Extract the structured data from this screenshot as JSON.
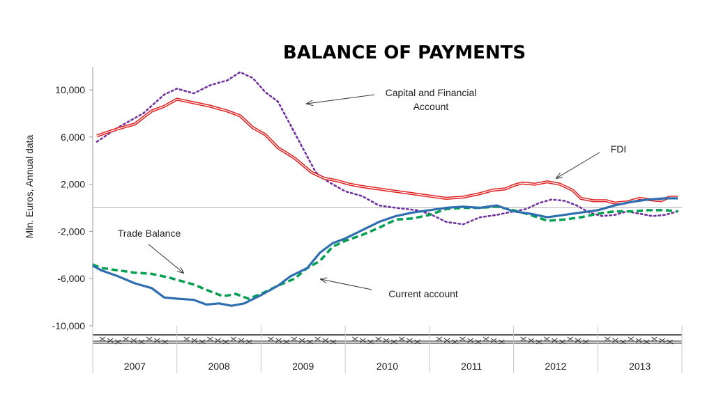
{
  "chart_data": {
    "type": "line",
    "title": "BALANCE OF PAYMENTS",
    "ylabel": "Mln. Euros, Annual data",
    "xlabel": "",
    "ylim": [
      -10000,
      12000
    ],
    "yticks": [
      10000,
      6000,
      2000,
      -2000,
      -6000,
      -10000
    ],
    "ytick_labels": [
      "10,000",
      "6,000",
      "2,000",
      "-2,000",
      "-6,000",
      "-10,000"
    ],
    "x_start": 2007.0,
    "x_end": 2014.0,
    "categories": [
      "2007",
      "2008",
      "2009",
      "2010",
      "2011",
      "2012",
      "2013"
    ],
    "zero_line": true,
    "grid": false,
    "legend": "none",
    "series": [
      {
        "key": "capital",
        "color": "#7030a0",
        "style": "dotted",
        "points": [
          [
            2007.05,
            5600
          ],
          [
            2007.3,
            6800
          ],
          [
            2007.6,
            8000
          ],
          [
            2007.85,
            9600
          ],
          [
            2008.0,
            10100
          ],
          [
            2008.2,
            9700
          ],
          [
            2008.4,
            10400
          ],
          [
            2008.6,
            10800
          ],
          [
            2008.75,
            11500
          ],
          [
            2008.9,
            11000
          ],
          [
            2009.05,
            9800
          ],
          [
            2009.2,
            9000
          ],
          [
            2009.35,
            7000
          ],
          [
            2009.5,
            5000
          ],
          [
            2009.65,
            3000
          ],
          [
            2009.8,
            2200
          ],
          [
            2010.0,
            1400
          ],
          [
            2010.2,
            1000
          ],
          [
            2010.4,
            200
          ],
          [
            2010.6,
            0
          ],
          [
            2010.85,
            -200
          ],
          [
            2011.0,
            -500
          ],
          [
            2011.2,
            -1200
          ],
          [
            2011.4,
            -1400
          ],
          [
            2011.6,
            -800
          ],
          [
            2011.8,
            -600
          ],
          [
            2012.0,
            -300
          ],
          [
            2012.15,
            -100
          ],
          [
            2012.3,
            400
          ],
          [
            2012.45,
            700
          ],
          [
            2012.6,
            600
          ],
          [
            2012.75,
            200
          ],
          [
            2012.9,
            -400
          ],
          [
            2013.05,
            -700
          ],
          [
            2013.2,
            -600
          ],
          [
            2013.35,
            -300
          ],
          [
            2013.5,
            -500
          ],
          [
            2013.65,
            -700
          ],
          [
            2013.8,
            -600
          ],
          [
            2013.95,
            -300
          ]
        ]
      },
      {
        "key": "fdi",
        "color": "#e02020",
        "style": "double",
        "points": [
          [
            2007.05,
            6100
          ],
          [
            2007.3,
            6700
          ],
          [
            2007.5,
            7100
          ],
          [
            2007.7,
            8200
          ],
          [
            2007.85,
            8600
          ],
          [
            2008.0,
            9200
          ],
          [
            2008.2,
            8900
          ],
          [
            2008.4,
            8600
          ],
          [
            2008.6,
            8200
          ],
          [
            2008.75,
            7800
          ],
          [
            2008.9,
            6800
          ],
          [
            2009.05,
            6200
          ],
          [
            2009.2,
            5100
          ],
          [
            2009.4,
            4200
          ],
          [
            2009.6,
            3000
          ],
          [
            2009.75,
            2500
          ],
          [
            2009.9,
            2300
          ],
          [
            2010.05,
            2000
          ],
          [
            2010.2,
            1800
          ],
          [
            2010.4,
            1600
          ],
          [
            2010.6,
            1400
          ],
          [
            2010.8,
            1200
          ],
          [
            2011.0,
            1000
          ],
          [
            2011.2,
            800
          ],
          [
            2011.4,
            900
          ],
          [
            2011.6,
            1200
          ],
          [
            2011.75,
            1500
          ],
          [
            2011.9,
            1600
          ],
          [
            2012.0,
            1900
          ],
          [
            2012.1,
            2100
          ],
          [
            2012.25,
            2000
          ],
          [
            2012.4,
            2200
          ],
          [
            2012.55,
            2000
          ],
          [
            2012.7,
            1500
          ],
          [
            2012.8,
            800
          ],
          [
            2012.95,
            600
          ],
          [
            2013.1,
            600
          ],
          [
            2013.2,
            400
          ],
          [
            2013.35,
            500
          ],
          [
            2013.5,
            800
          ],
          [
            2013.6,
            700
          ],
          [
            2013.75,
            600
          ],
          [
            2013.85,
            900
          ],
          [
            2013.95,
            900
          ]
        ]
      },
      {
        "key": "trade",
        "color": "#00a050",
        "style": "dashed",
        "points": [
          [
            2007.0,
            -4800
          ],
          [
            2007.1,
            -5100
          ],
          [
            2007.3,
            -5300
          ],
          [
            2007.5,
            -5500
          ],
          [
            2007.7,
            -5600
          ],
          [
            2007.9,
            -5900
          ],
          [
            2008.05,
            -6200
          ],
          [
            2008.2,
            -6500
          ],
          [
            2008.4,
            -7100
          ],
          [
            2008.55,
            -7500
          ],
          [
            2008.7,
            -7300
          ],
          [
            2008.85,
            -7700
          ],
          [
            2009.0,
            -7300
          ],
          [
            2009.2,
            -6600
          ],
          [
            2009.4,
            -6000
          ],
          [
            2009.55,
            -5100
          ],
          [
            2009.7,
            -4500
          ],
          [
            2009.85,
            -3300
          ],
          [
            2010.0,
            -2800
          ],
          [
            2010.2,
            -2300
          ],
          [
            2010.4,
            -1700
          ],
          [
            2010.6,
            -1000
          ],
          [
            2010.8,
            -900
          ],
          [
            2011.0,
            -600
          ],
          [
            2011.2,
            -100
          ],
          [
            2011.4,
            0
          ],
          [
            2011.6,
            0
          ],
          [
            2011.8,
            100
          ],
          [
            2012.0,
            -200
          ],
          [
            2012.2,
            -600
          ],
          [
            2012.4,
            -1100
          ],
          [
            2012.6,
            -1000
          ],
          [
            2012.8,
            -800
          ],
          [
            2013.0,
            -500
          ],
          [
            2013.2,
            -300
          ],
          [
            2013.4,
            -300
          ],
          [
            2013.6,
            -200
          ],
          [
            2013.8,
            -200
          ],
          [
            2013.95,
            -300
          ]
        ]
      },
      {
        "key": "current",
        "color": "#2e6eb0",
        "style": "solid",
        "points": [
          [
            2007.0,
            -4900
          ],
          [
            2007.1,
            -5300
          ],
          [
            2007.3,
            -5800
          ],
          [
            2007.5,
            -6400
          ],
          [
            2007.7,
            -6800
          ],
          [
            2007.85,
            -7600
          ],
          [
            2008.0,
            -7700
          ],
          [
            2008.2,
            -7800
          ],
          [
            2008.35,
            -8200
          ],
          [
            2008.5,
            -8100
          ],
          [
            2008.65,
            -8300
          ],
          [
            2008.8,
            -8100
          ],
          [
            2009.0,
            -7400
          ],
          [
            2009.2,
            -6600
          ],
          [
            2009.35,
            -5800
          ],
          [
            2009.55,
            -5100
          ],
          [
            2009.7,
            -3800
          ],
          [
            2009.85,
            -3000
          ],
          [
            2010.0,
            -2600
          ],
          [
            2010.2,
            -1900
          ],
          [
            2010.4,
            -1200
          ],
          [
            2010.6,
            -700
          ],
          [
            2010.8,
            -400
          ],
          [
            2011.0,
            -200
          ],
          [
            2011.2,
            0
          ],
          [
            2011.4,
            100
          ],
          [
            2011.6,
            0
          ],
          [
            2011.8,
            200
          ],
          [
            2012.0,
            -300
          ],
          [
            2012.2,
            -500
          ],
          [
            2012.4,
            -800
          ],
          [
            2012.6,
            -600
          ],
          [
            2012.8,
            -400
          ],
          [
            2013.0,
            -200
          ],
          [
            2013.2,
            200
          ],
          [
            2013.4,
            500
          ],
          [
            2013.6,
            700
          ],
          [
            2013.8,
            800
          ],
          [
            2013.95,
            800
          ]
        ]
      }
    ],
    "annotations": [
      {
        "key": "capital",
        "text_lines": [
          "Capital and Financial",
          "Account"
        ]
      },
      {
        "key": "fdi",
        "text_lines": [
          "FDI"
        ]
      },
      {
        "key": "trade",
        "text_lines": [
          "Trade Balance"
        ]
      },
      {
        "key": "current",
        "text_lines": [
          "Current account"
        ]
      }
    ]
  }
}
